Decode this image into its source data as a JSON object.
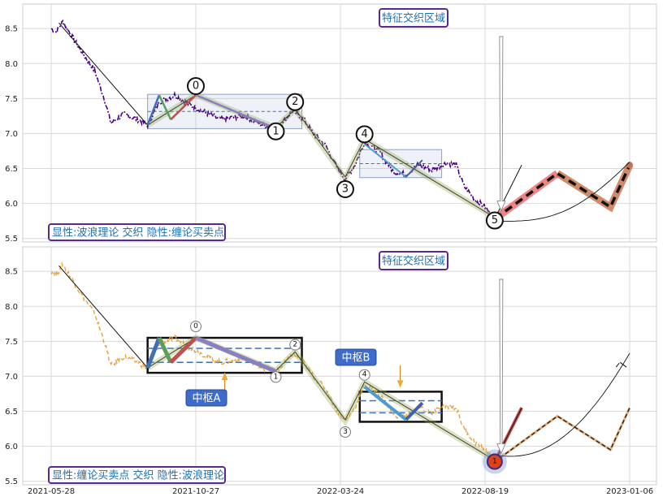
{
  "chart_data": [
    {
      "type": "line",
      "panel": "top",
      "title": "",
      "xlabel": "",
      "ylabel": "",
      "ylim": [
        5.45,
        8.85
      ],
      "yticks": [
        5.5,
        6.0,
        6.5,
        7.0,
        7.5,
        8.0,
        8.5
      ],
      "annotation_top": "特征交织区域",
      "annotation_bottom_left": "显性:波浪理论 交织 隐性:缠论买卖点",
      "price_color": "#4b0082",
      "wave_points": [
        {
          "label": "0",
          "t": 150,
          "y": 7.55
        },
        {
          "label": "1",
          "t": 233,
          "y": 7.1
        },
        {
          "label": "2",
          "t": 253,
          "y": 7.38
        },
        {
          "label": "3",
          "t": 305,
          "y": 6.32
        },
        {
          "label": "4",
          "t": 325,
          "y": 6.92
        },
        {
          "label": "5",
          "t": 460,
          "y": 5.78
        }
      ],
      "zhongshu_boxes": [
        {
          "t0": 100,
          "t1": 260,
          "y0": 7.07,
          "y1": 7.56
        },
        {
          "t0": 320,
          "t1": 405,
          "y0": 6.37,
          "y1": 6.77
        }
      ]
    },
    {
      "type": "line",
      "panel": "bottom",
      "title": "",
      "xlabel": "",
      "ylabel": "",
      "ylim": [
        5.45,
        8.85
      ],
      "yticks": [
        5.5,
        6.0,
        6.5,
        7.0,
        7.5,
        8.0,
        8.5
      ],
      "xticks": [
        "2021-05-28",
        "2021-10-27",
        "2022-03-24",
        "2022-08-19",
        "2023-01-06"
      ],
      "annotation_top": "特征交织区域",
      "annotation_bottom_left": "显性:缠论买卖点 交织 隐性:波浪理论",
      "price_color": "#e8a33a",
      "zhongshu_labels": [
        "中枢A",
        "中枢B"
      ],
      "buy_point_label": "1",
      "wave_points": [
        {
          "label": "0",
          "t": 150,
          "y": 7.55
        },
        {
          "label": "1",
          "t": 233,
          "y": 7.07
        },
        {
          "label": "2",
          "t": 253,
          "y": 7.38
        },
        {
          "label": "3",
          "t": 305,
          "y": 6.32
        },
        {
          "label": "4",
          "t": 325,
          "y": 6.95
        },
        {
          "label": "1",
          "t": 460,
          "y": 5.78
        }
      ],
      "zhongshu_boxes": [
        {
          "name": "中枢A",
          "t0": 100,
          "t1": 260,
          "y0": 7.05,
          "y1": 7.55
        },
        {
          "name": "中枢B",
          "t0": 320,
          "t1": 405,
          "y0": 6.35,
          "y1": 6.78
        }
      ]
    }
  ]
}
